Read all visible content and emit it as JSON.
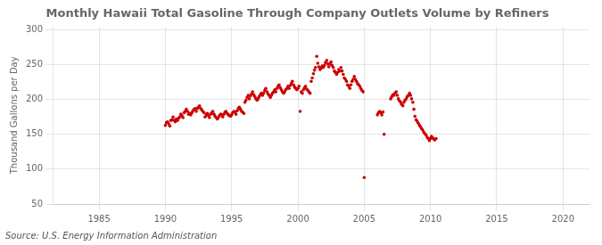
{
  "chart_data": {
    "type": "scatter",
    "title": "Monthly Hawaii Total Gasoline Through Company Outlets Volume by Refiners",
    "ylabel": "Thousand Gallons per Day",
    "annotations": [
      "Source: U.S. Energy Information Administration"
    ],
    "xlim": [
      1981.5,
      2022
    ],
    "ylim": [
      50,
      305
    ],
    "xticks": [
      1985,
      1990,
      1995,
      2000,
      2005,
      2010,
      2015,
      2020
    ],
    "yticks": [
      50,
      100,
      150,
      200,
      250,
      300
    ],
    "grid": true,
    "color": "#cc0000",
    "x": [
      1990.0,
      1990.08,
      1990.17,
      1990.25,
      1990.33,
      1990.42,
      1990.5,
      1990.58,
      1990.67,
      1990.75,
      1990.83,
      1990.92,
      1991.0,
      1991.08,
      1991.17,
      1991.25,
      1991.33,
      1991.42,
      1991.5,
      1991.58,
      1991.67,
      1991.75,
      1991.83,
      1991.92,
      1992.0,
      1992.08,
      1992.17,
      1992.25,
      1992.33,
      1992.42,
      1992.5,
      1992.58,
      1992.67,
      1992.75,
      1992.83,
      1992.92,
      1993.0,
      1993.08,
      1993.17,
      1993.25,
      1993.33,
      1993.42,
      1993.5,
      1993.58,
      1993.67,
      1993.75,
      1993.83,
      1993.92,
      1994.0,
      1994.08,
      1994.17,
      1994.25,
      1994.33,
      1994.42,
      1994.5,
      1994.58,
      1994.67,
      1994.75,
      1994.83,
      1994.92,
      1995.0,
      1995.08,
      1995.17,
      1995.25,
      1995.33,
      1995.42,
      1995.5,
      1995.58,
      1995.67,
      1995.75,
      1995.83,
      1995.92,
      1996.0,
      1996.08,
      1996.17,
      1996.25,
      1996.33,
      1996.42,
      1996.5,
      1996.58,
      1996.67,
      1996.75,
      1996.83,
      1996.92,
      1997.0,
      1997.08,
      1997.17,
      1997.25,
      1997.33,
      1997.42,
      1997.5,
      1997.58,
      1997.67,
      1997.75,
      1997.83,
      1997.92,
      1998.0,
      1998.08,
      1998.17,
      1998.25,
      1998.33,
      1998.42,
      1998.5,
      1998.58,
      1998.67,
      1998.75,
      1998.83,
      1998.92,
      1999.0,
      1999.08,
      1999.17,
      1999.25,
      1999.33,
      1999.42,
      1999.5,
      1999.58,
      1999.67,
      1999.75,
      1999.83,
      1999.92,
      2000.0,
      2000.08,
      2000.17,
      2000.25,
      2000.33,
      2000.42,
      2000.5,
      2000.58,
      2000.67,
      2000.75,
      2000.83,
      2000.92,
      2001.0,
      2001.08,
      2001.17,
      2001.25,
      2001.33,
      2001.42,
      2001.5,
      2001.58,
      2001.67,
      2001.75,
      2001.83,
      2001.92,
      2002.0,
      2002.08,
      2002.17,
      2002.25,
      2002.33,
      2002.42,
      2002.5,
      2002.58,
      2002.67,
      2002.75,
      2002.83,
      2002.92,
      2003.0,
      2003.08,
      2003.17,
      2003.25,
      2003.33,
      2003.42,
      2003.5,
      2003.58,
      2003.67,
      2003.75,
      2003.83,
      2003.92,
      2004.0,
      2004.08,
      2004.17,
      2004.25,
      2004.33,
      2004.42,
      2004.5,
      2004.58,
      2004.67,
      2004.75,
      2004.83,
      2004.92,
      2005.0,
      2006.0,
      2006.08,
      2006.17,
      2006.25,
      2006.33,
      2006.42,
      2006.5,
      2007.0,
      2007.08,
      2007.17,
      2007.25,
      2007.33,
      2007.42,
      2007.5,
      2007.58,
      2007.67,
      2007.75,
      2007.83,
      2007.92,
      2008.0,
      2008.08,
      2008.17,
      2008.25,
      2008.33,
      2008.42,
      2008.5,
      2008.58,
      2008.67,
      2008.75,
      2008.83,
      2008.92,
      2009.0,
      2009.08,
      2009.17,
      2009.25,
      2009.33,
      2009.42,
      2009.5,
      2009.58,
      2009.67,
      2009.75,
      2009.83,
      2009.92,
      2010.0,
      2010.08,
      2010.17,
      2010.25,
      2010.33,
      2010.42
    ],
    "values": [
      163,
      167,
      168,
      165,
      162,
      170,
      171,
      175,
      170,
      168,
      172,
      170,
      173,
      175,
      179,
      177,
      174,
      181,
      183,
      186,
      183,
      179,
      180,
      178,
      181,
      184,
      186,
      187,
      183,
      187,
      189,
      191,
      187,
      185,
      183,
      181,
      175,
      178,
      180,
      177,
      174,
      179,
      181,
      183,
      179,
      176,
      174,
      172,
      174,
      177,
      179,
      178,
      175,
      179,
      182,
      183,
      180,
      178,
      177,
      176,
      178,
      181,
      183,
      182,
      179,
      184,
      187,
      189,
      186,
      183,
      182,
      180,
      196,
      199,
      203,
      206,
      201,
      205,
      208,
      211,
      207,
      204,
      201,
      199,
      201,
      204,
      207,
      209,
      206,
      209,
      213,
      216,
      211,
      208,
      206,
      203,
      206,
      209,
      211,
      214,
      211,
      216,
      219,
      221,
      217,
      214,
      211,
      209,
      211,
      214,
      216,
      219,
      216,
      220,
      223,
      226,
      221,
      218,
      216,
      214,
      216,
      219,
      183,
      211,
      209,
      214,
      217,
      219,
      215,
      213,
      211,
      209,
      226,
      231,
      237,
      242,
      246,
      262,
      252,
      247,
      243,
      245,
      248,
      246,
      249,
      253,
      256,
      251,
      247,
      251,
      254,
      249,
      246,
      241,
      239,
      236,
      239,
      243,
      241,
      246,
      241,
      236,
      231,
      229,
      226,
      221,
      219,
      216,
      221,
      226,
      229,
      233,
      229,
      226,
      223,
      221,
      219,
      216,
      213,
      211,
      88,
      178,
      181,
      183,
      181,
      178,
      182,
      150,
      201,
      204,
      207,
      206,
      209,
      211,
      206,
      201,
      198,
      196,
      193,
      191,
      196,
      199,
      201,
      204,
      206,
      209,
      206,
      201,
      196,
      186,
      176,
      171,
      169,
      166,
      163,
      161,
      158,
      156,
      153,
      151,
      149,
      146,
      144,
      141,
      144,
      147,
      145,
      143,
      142,
      144
    ]
  }
}
